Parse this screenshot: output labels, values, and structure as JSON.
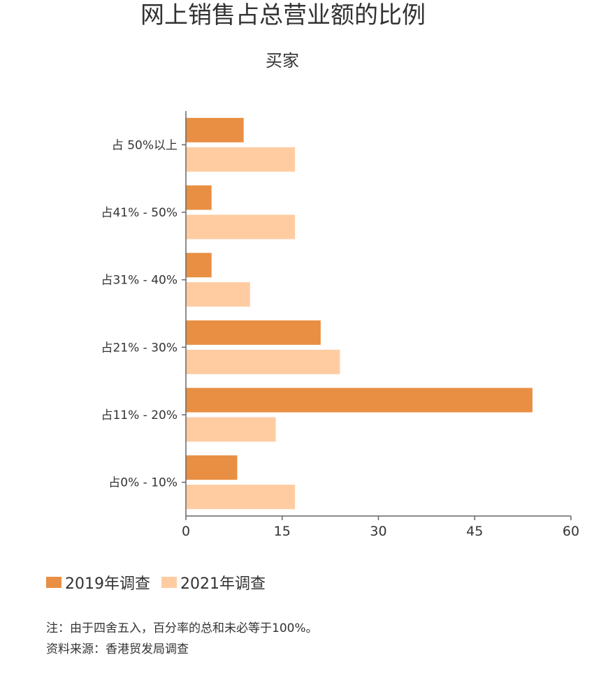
{
  "chart_data": {
    "type": "bar",
    "orientation": "horizontal",
    "title": "网上销售占总营业额的比例",
    "subtitle": "买家",
    "categories": [
      "占 50%以上",
      "占41% - 50%",
      "占31% - 40%",
      "占21% - 30%",
      "占11% - 20%",
      "占0% - 10%"
    ],
    "series": [
      {
        "name": "2019年调查",
        "color": "#E88F43",
        "values": [
          9,
          4,
          4,
          21,
          54,
          8
        ]
      },
      {
        "name": "2021年调查",
        "color": "#FFCCA2",
        "values": [
          17,
          17,
          10,
          24,
          14,
          17
        ]
      }
    ],
    "xlim": [
      0,
      60
    ],
    "xticks": [
      0,
      15,
      30,
      45,
      60
    ],
    "xlabel": "",
    "ylabel": "",
    "grid": false,
    "legend_position": "bottom-left"
  },
  "notes": [
    "注：由于四舍五入，百分率的总和未必等于100%。",
    "资料来源：香港贸发局调查"
  ]
}
